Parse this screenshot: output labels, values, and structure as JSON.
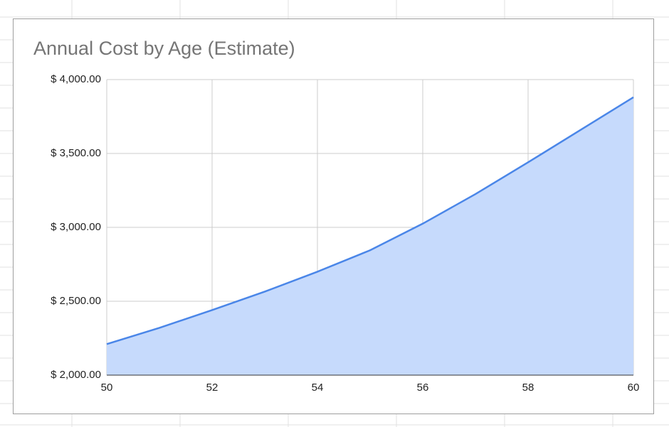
{
  "chart_data": {
    "type": "area",
    "title": "Annual Cost by Age (Estimate)",
    "x": [
      50,
      51,
      52,
      53,
      54,
      55,
      56,
      57,
      58,
      59,
      60
    ],
    "series": [
      {
        "color": "#4a86e8",
        "fill": "#c6dafc",
        "values": [
          2210,
          2320,
          2440,
          2565,
          2700,
          2845,
          3025,
          3225,
          3440,
          3660,
          3880
        ]
      }
    ],
    "xlim": [
      50,
      60
    ],
    "xticks": [
      50,
      52,
      54,
      56,
      58,
      60
    ],
    "ylim": [
      2000,
      4000
    ],
    "yticks": [
      {
        "value": 2000,
        "label": "$ 2,000.00"
      },
      {
        "value": 2500,
        "label": "$ 2,500.00"
      },
      {
        "value": 3000,
        "label": "$ 3,000.00"
      },
      {
        "value": 3500,
        "label": "$ 3,500.00"
      },
      {
        "value": 4000,
        "label": "$ 4,000.00"
      }
    ],
    "grid": true
  }
}
